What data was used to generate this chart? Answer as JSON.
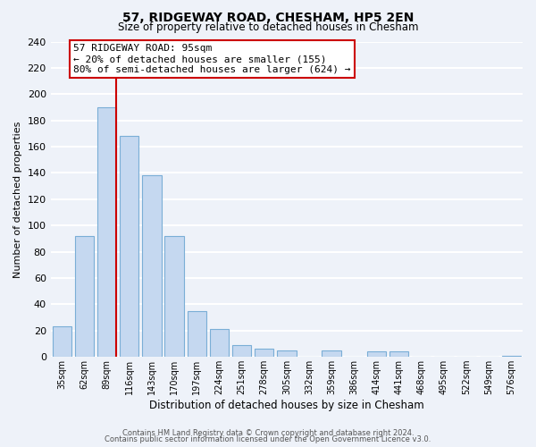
{
  "title": "57, RIDGEWAY ROAD, CHESHAM, HP5 2EN",
  "subtitle": "Size of property relative to detached houses in Chesham",
  "xlabel": "Distribution of detached houses by size in Chesham",
  "ylabel": "Number of detached properties",
  "bar_labels": [
    "35sqm",
    "62sqm",
    "89sqm",
    "116sqm",
    "143sqm",
    "170sqm",
    "197sqm",
    "224sqm",
    "251sqm",
    "278sqm",
    "305sqm",
    "332sqm",
    "359sqm",
    "386sqm",
    "414sqm",
    "441sqm",
    "468sqm",
    "495sqm",
    "522sqm",
    "549sqm",
    "576sqm"
  ],
  "bar_values": [
    23,
    92,
    190,
    168,
    138,
    92,
    35,
    21,
    9,
    6,
    5,
    0,
    5,
    0,
    4,
    4,
    0,
    0,
    0,
    0,
    1
  ],
  "bar_color": "#c5d8f0",
  "bar_edge_color": "#7aaed6",
  "vline_color": "#cc0000",
  "annotation_text": "57 RIDGEWAY ROAD: 95sqm\n← 20% of detached houses are smaller (155)\n80% of semi-detached houses are larger (624) →",
  "annotation_box_color": "white",
  "annotation_box_edge_color": "#cc0000",
  "ylim": [
    0,
    240
  ],
  "yticks": [
    0,
    20,
    40,
    60,
    80,
    100,
    120,
    140,
    160,
    180,
    200,
    220,
    240
  ],
  "footer_line1": "Contains HM Land Registry data © Crown copyright and database right 2024.",
  "footer_line2": "Contains public sector information licensed under the Open Government Licence v3.0.",
  "background_color": "#eef2f9",
  "grid_color": "white"
}
